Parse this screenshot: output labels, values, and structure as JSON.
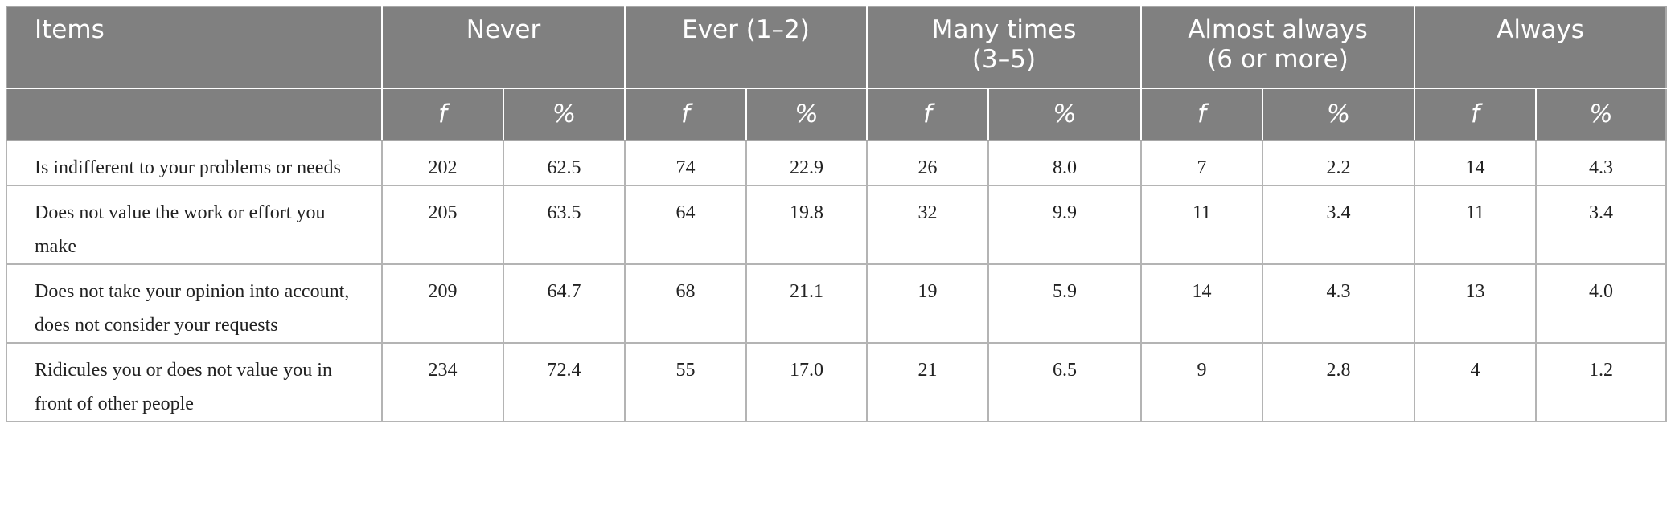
{
  "table": {
    "headers": [
      "Items",
      "Never",
      "Ever (1–2)",
      "Many times (3–5)",
      "Almost always (6 or more)",
      "Always"
    ],
    "subheaders": [
      "f",
      "%",
      "f",
      "%",
      "f",
      "%",
      "f",
      "%",
      "f",
      "%"
    ],
    "rows": [
      [
        "Is indifferent to your problems or needs",
        "202",
        "62.5",
        "74",
        "22.9",
        "26",
        "8.0",
        "7",
        "2.2",
        "14",
        "4.3"
      ],
      [
        "Does not value the work or effort you make",
        "205",
        "63.5",
        "64",
        "19.8",
        "32",
        "9.9",
        "11",
        "3.4",
        "11",
        "3.4"
      ],
      [
        "Does not take your opinion into account, does not consider your requests",
        "209",
        "64.7",
        "68",
        "21.1",
        "19",
        "5.9",
        "14",
        "4.3",
        "13",
        "4.0"
      ],
      [
        "Ridicules you or does not value you in front of other people",
        "234",
        "72.4",
        "55",
        "17.0",
        "21",
        "6.5",
        "9",
        "2.8",
        "4",
        "1.2"
      ]
    ]
  }
}
